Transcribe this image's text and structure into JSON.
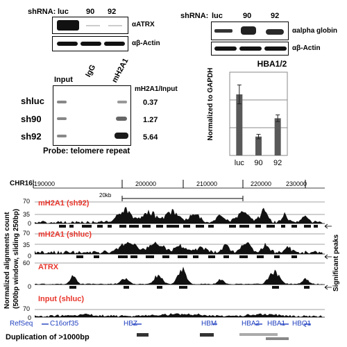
{
  "westerns": {
    "left": {
      "shrna_label": "shRNA:",
      "lanes": [
        "luc",
        "90",
        "92"
      ],
      "blots": [
        "αATRX",
        "αβ-Actin"
      ]
    },
    "right": {
      "shrna_label": "shRNA:",
      "lanes": [
        "luc",
        "90",
        "92"
      ],
      "blots": [
        "αalpha globin",
        "αβ-Actin"
      ]
    }
  },
  "chip_dot_blot": {
    "columns": [
      "Input",
      "IgG",
      "mH2A1"
    ],
    "ratio_header": "mH2A1/Input",
    "rows": [
      {
        "label": "shluc",
        "value": "0.37"
      },
      {
        "label": "sh90",
        "value": "1.27"
      },
      {
        "label": "sh92",
        "value": "5.64"
      }
    ],
    "probe": "Probe: telomere repeat"
  },
  "chart_data": {
    "type": "bar",
    "title": "HBA1/2",
    "ylabel": "Normalized to GAPDH",
    "categories": [
      "luc",
      "90",
      "92"
    ],
    "values": [
      110,
      34,
      67
    ],
    "errors": [
      17,
      4,
      6
    ],
    "ylim": [
      0,
      150
    ],
    "grid": true,
    "bar_color": "#595959"
  },
  "browser": {
    "chrom_label": "CHR16:",
    "coord_ticks": [
      "190000",
      "200000",
      "210000",
      "220000",
      "230000"
    ],
    "scale_label": "20kb",
    "yaxis_label_1": "Normalized alignments count",
    "yaxis_label_2": "(500bp window, sliding 250bp)",
    "peaks_label": "Significant peaks",
    "tracks": [
      {
        "name": "mH2A1 (sh92)",
        "ticks": [
          "70",
          "35",
          "0"
        ]
      },
      {
        "name": "mH2A1 (shluc)",
        "ticks": [
          "70",
          "35",
          "0"
        ]
      },
      {
        "name": "ATRX",
        "ticks": [
          "60",
          "0"
        ]
      },
      {
        "name": "Input (shluc)",
        "ticks": [
          "70",
          "0"
        ]
      }
    ],
    "refseq_label": "RefSeq",
    "genes": [
      "C16orf35",
      "HBZ",
      "HBM",
      "HBA2",
      "HBA1",
      "HBQ1"
    ],
    "duplication_label": "Duplication of >1000bp",
    "colors": {
      "track_label": "#e8352b",
      "gene": "#1f3fbf",
      "signal": "#111111"
    }
  }
}
